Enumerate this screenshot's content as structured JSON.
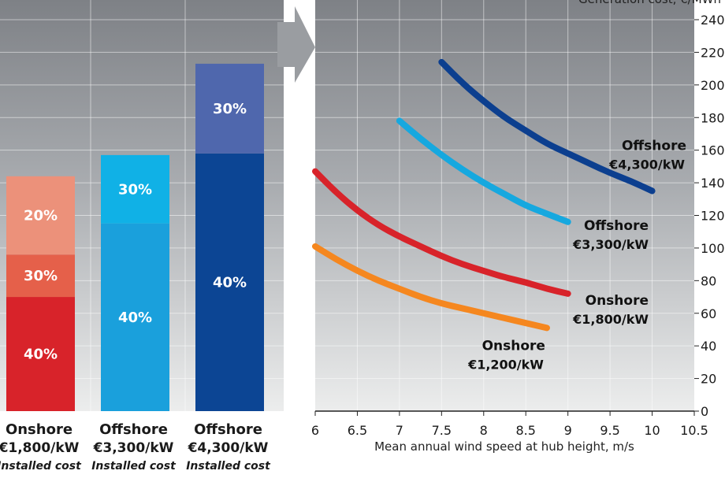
{
  "chart_data": [
    {
      "type": "bar",
      "stacked": true,
      "ylim": [
        0,
        240
      ],
      "grid": true,
      "categories": [
        {
          "name": "Onshore",
          "price": "€1,800/kW",
          "sub": "Installed cost",
          "total": 144
        },
        {
          "name": "Offshore",
          "price": "€3,300/kW",
          "sub": "Installed cost",
          "total": 157
        },
        {
          "name": "Offshore",
          "price": "€4,300/kW",
          "sub": "Installed cost",
          "total": 213
        }
      ],
      "segments": [
        [
          {
            "label": "40%",
            "value": 70,
            "color": "#d8232a"
          },
          {
            "label": "30%",
            "value": 26,
            "color": "#e5604a"
          },
          {
            "label": "20%",
            "value": 48,
            "color": "#ec917a"
          }
        ],
        [
          {
            "label": "40%",
            "value": 115,
            "color": "#1aa0dc"
          },
          {
            "label": "30%",
            "value": 42,
            "color": "#10b1e6"
          }
        ],
        [
          {
            "label": "40%",
            "value": 158,
            "color": "#0c4594"
          },
          {
            "label": "30%",
            "value": 55,
            "color": "#4f67ad"
          }
        ]
      ]
    },
    {
      "type": "line",
      "ylabel": "Generation cost, €/MWh",
      "xlabel": "Mean annual wind speed at hub height, m/s",
      "xlim": [
        6,
        10.5
      ],
      "ylim": [
        0,
        240
      ],
      "x_ticks": [
        "6",
        "6.5",
        "7",
        "7.5",
        "8",
        "8.5",
        "9",
        "9.5",
        "10",
        "10.5"
      ],
      "y_ticks": [
        "0",
        "20",
        "40",
        "60",
        "80",
        "100",
        "120",
        "140",
        "160",
        "180",
        "200",
        "220",
        "240"
      ],
      "grid": true,
      "series": [
        {
          "label_line1": "Offshore",
          "label_line2": "€4,300/kW",
          "color": "#0c3f8f",
          "x": [
            7.5,
            7.75,
            8,
            8.25,
            8.5,
            8.75,
            9,
            9.25,
            9.5,
            9.75,
            10
          ],
          "y": [
            214,
            201,
            190,
            180,
            172,
            164,
            158,
            152,
            146,
            141,
            135
          ]
        },
        {
          "label_line1": "Offshore",
          "label_line2": "€3,300/kW",
          "color": "#16a8df",
          "x": [
            7,
            7.25,
            7.5,
            7.75,
            8,
            8.25,
            8.5,
            8.75,
            9
          ],
          "y": [
            178,
            167,
            157,
            148,
            140,
            133,
            126,
            121,
            116
          ]
        },
        {
          "label_line1": "Onshore",
          "label_line2": "€1,800/kW",
          "color": "#d8232a",
          "x": [
            6,
            6.25,
            6.5,
            6.75,
            7,
            7.25,
            7.5,
            7.75,
            8,
            8.25,
            8.5,
            8.75,
            9
          ],
          "y": [
            147,
            134,
            123,
            114,
            107,
            101,
            95,
            90,
            86,
            82,
            79,
            75,
            72
          ]
        },
        {
          "label_line1": "Onshore",
          "label_line2": "€1,200/kW",
          "color": "#f5871f",
          "x": [
            6,
            6.25,
            6.5,
            6.75,
            7,
            7.25,
            7.5,
            7.75,
            8,
            8.25,
            8.5,
            8.75
          ],
          "y": [
            101,
            93,
            86,
            80,
            75,
            70,
            66,
            63,
            60,
            57,
            54,
            51
          ]
        }
      ]
    }
  ]
}
